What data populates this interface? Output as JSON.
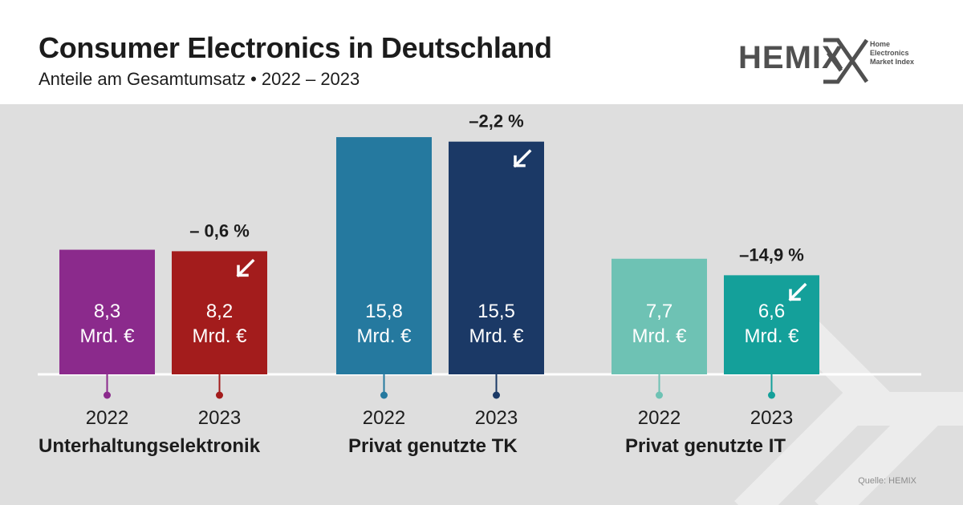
{
  "header": {
    "title": "Consumer Electronics in Deutschland",
    "subtitle": "Anteile am Gesamtumsatz • 2022 – 2023"
  },
  "logo": {
    "name": "HEMIX",
    "tagline": [
      "Home",
      "Electronics",
      "Market Index"
    ],
    "color": "#505050",
    "icon": "x-arrows-icon"
  },
  "source": "Quelle: HEMIX",
  "chart_data": {
    "type": "bar",
    "unit": "Mrd. €",
    "categories": [
      "2022",
      "2023"
    ],
    "groups": [
      {
        "name": "Unterhaltungselektronik",
        "bars": [
          {
            "year": "2022",
            "value": 8.3,
            "label": "8,3",
            "color": "#8b2a8c"
          },
          {
            "year": "2023",
            "value": 8.2,
            "label": "8,2",
            "color": "#a31c1c"
          }
        ],
        "change": "– 0,6 %"
      },
      {
        "name": "Privat genutzte TK",
        "bars": [
          {
            "year": "2022",
            "value": 15.8,
            "label": "15,8",
            "color": "#25799f"
          },
          {
            "year": "2023",
            "value": 15.5,
            "label": "15,5",
            "color": "#1b3966"
          }
        ],
        "change": "–2,2 %"
      },
      {
        "name": "Privat genutzte IT",
        "bars": [
          {
            "year": "2022",
            "value": 7.7,
            "label": "7,7",
            "color": "#6ec2b4"
          },
          {
            "year": "2023",
            "value": 6.6,
            "label": "6,6",
            "color": "#14a09a"
          }
        ],
        "change": "–14,9 %"
      }
    ],
    "trend_icon": "arrow-down-left-icon",
    "baseline_color": "#ffffff",
    "background_color": "#dedede"
  }
}
